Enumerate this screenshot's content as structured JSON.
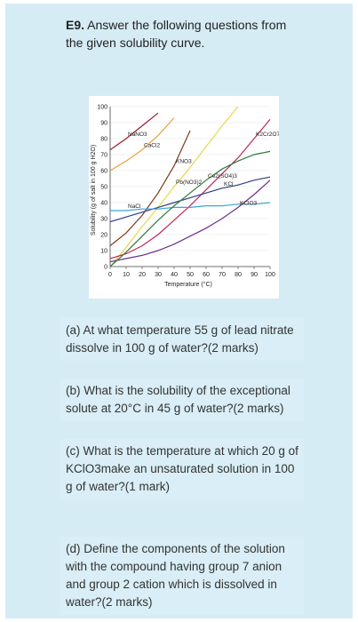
{
  "header": {
    "label": "E9.",
    "text": "Answer the following questions from the given solubility curve."
  },
  "chart_data": {
    "type": "line",
    "xlabel": "Temperature (°C)",
    "ylabel": "Solubility (g of salt in 100 g H2O)",
    "x": [
      0,
      10,
      20,
      30,
      40,
      50,
      60,
      70,
      80,
      90,
      100
    ],
    "xlim": [
      0,
      100
    ],
    "ylim": [
      0,
      100
    ],
    "xticks": [
      0,
      10,
      20,
      30,
      40,
      50,
      60,
      70,
      80,
      90,
      100
    ],
    "yticks": [
      0,
      10,
      20,
      30,
      40,
      50,
      60,
      70,
      80,
      90,
      100
    ],
    "series": [
      {
        "name": "NaNO3",
        "color": "#9b1c2c",
        "values": [
          73,
          80,
          88,
          96,
          null,
          null,
          null,
          null,
          null,
          null,
          null
        ]
      },
      {
        "name": "CaCl2",
        "color": "#e8a33a",
        "values": [
          60,
          66,
          73,
          82,
          93,
          null,
          null,
          null,
          null,
          null,
          null
        ]
      },
      {
        "name": "Pb(NO3)2",
        "color": "#e8d84a",
        "values": [
          0,
          12,
          25,
          37,
          50,
          62,
          75,
          88,
          100,
          null,
          null
        ]
      },
      {
        "name": "KNO3",
        "color": "#7a3b1a",
        "values": [
          13,
          21,
          32,
          46,
          63,
          85,
          null,
          null,
          null,
          null,
          null
        ]
      },
      {
        "name": "K2Cr2O7",
        "color": "#c2245c",
        "values": [
          5,
          8,
          13,
          20,
          29,
          38,
          48,
          58,
          68,
          80,
          92
        ]
      },
      {
        "name": "KCl",
        "color": "#2b3f8c",
        "values": [
          28,
          31,
          34,
          37,
          40,
          43,
          46,
          49,
          51,
          54,
          56
        ]
      },
      {
        "name": "NaCl",
        "color": "#3aa3d8",
        "values": [
          35,
          35,
          36,
          36,
          37,
          37,
          38,
          38,
          39,
          39,
          40
        ]
      },
      {
        "name": "KClO3",
        "color": "#6b2f8f",
        "values": [
          3,
          5,
          7,
          10,
          14,
          19,
          24,
          30,
          37,
          45,
          54
        ]
      },
      {
        "name": "Ce2(SO4)3",
        "color": "#2f7a3a",
        "values": [
          0,
          9,
          19,
          29,
          38,
          46,
          54,
          61,
          66,
          70,
          72
        ]
      }
    ]
  },
  "questions": [
    "(a)  At what temperature 55 g of lead nitrate dissolve in  100 g of water?(2 marks)",
    "(b)  What is the solubility of the exceptional solute at 20°C in 45 g of water?(2 marks)",
    "(c)  What is the temperature at which 20 g of KClO3make an unsaturated solution in 100 g of water?(1 mark)",
    "(d)  Define the components of the solution with the compound  having group 7 anion and group 2 cation which is dissolved in water?(2 marks)"
  ]
}
